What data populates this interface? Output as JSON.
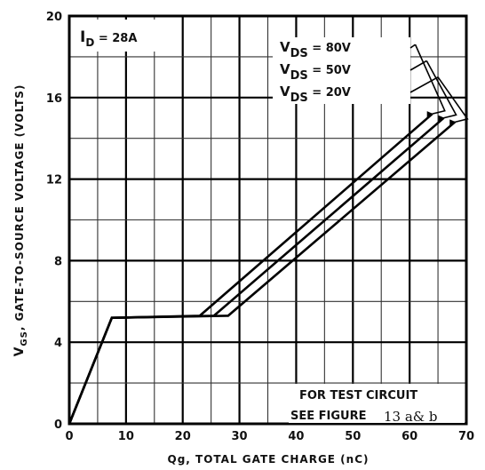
{
  "chart_data": {
    "type": "line",
    "xlabel": "Qg,  TOTAL GATE CHARGE  (nC)",
    "ylabel": "V",
    "ylabel_sub": "GS",
    "ylabel_rest": ",  GATE-TO-SOURCE VOLTAGE  (VOLTS)",
    "xlim": [
      0,
      70
    ],
    "ylim": [
      0,
      20
    ],
    "x_ticks": [
      0,
      10,
      20,
      30,
      40,
      50,
      60,
      70
    ],
    "y_ticks": [
      0,
      4,
      8,
      12,
      16,
      20
    ],
    "grid": true,
    "series": [
      {
        "name": "80V",
        "x": [
          0,
          7.5,
          23,
          64
        ],
        "y": [
          0,
          5.2,
          5.3,
          15.2
        ]
      },
      {
        "name": "50V",
        "x": [
          0,
          7.5,
          25.5,
          66
        ],
        "y": [
          0,
          5.2,
          5.3,
          15.0
        ]
      },
      {
        "name": "20V",
        "x": [
          0,
          7.5,
          28,
          68
        ],
        "y": [
          0,
          5.2,
          5.3,
          14.8
        ]
      }
    ],
    "legend": {
      "prefix": "V",
      "sub": "DS",
      "eq": "=",
      "values": [
        "80V",
        "50V",
        "20V"
      ],
      "label_x": [
        61,
        63,
        65
      ],
      "label_y": [
        18.6,
        17.8,
        17.0
      ]
    },
    "annotation_id": {
      "main": "I",
      "sub": "D",
      "rest": " = 28A"
    },
    "note": {
      "line1": "FOR TEST CIRCUIT",
      "line2": "SEE FIGURE",
      "line2_extra": "13 a& b"
    }
  }
}
